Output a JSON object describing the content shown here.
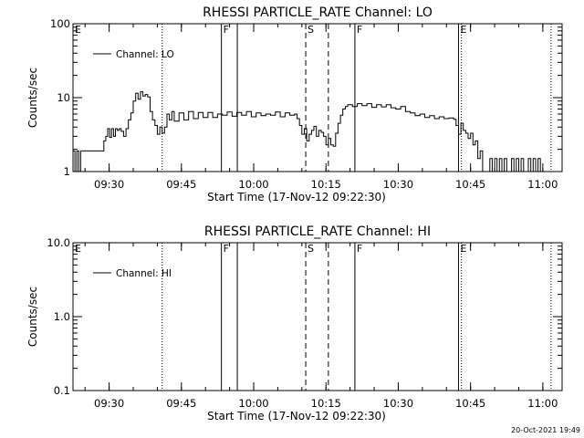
{
  "footer": {
    "timestamp": "20-Oct-2021 19:49"
  },
  "chart_data": [
    {
      "type": "line",
      "title": "RHESSI PARTICLE_RATE Channel: LO",
      "xlabel": "Start Time (17-Nov-12 09:22:30)",
      "ylabel": "Counts/sec",
      "x_unit": "minutes after 09:22:30",
      "xlim": [
        0,
        101.5
      ],
      "ylim": [
        1,
        100
      ],
      "yscale": "log",
      "x_ticks": [
        {
          "x": 7.5,
          "label": "09:30"
        },
        {
          "x": 22.5,
          "label": "09:45"
        },
        {
          "x": 37.5,
          "label": "10:00"
        },
        {
          "x": 52.5,
          "label": "10:15"
        },
        {
          "x": 67.5,
          "label": "10:30"
        },
        {
          "x": 82.5,
          "label": "10:45"
        },
        {
          "x": 97.5,
          "label": "11:00"
        }
      ],
      "y_ticks": [
        {
          "y": 1,
          "label": "1"
        },
        {
          "y": 10,
          "label": "10"
        },
        {
          "y": 100,
          "label": "100"
        }
      ],
      "legend": {
        "position": "top-left",
        "entries": [
          "Channel: LO"
        ]
      },
      "markers": [
        {
          "x": 0,
          "style": "none",
          "label": "E"
        },
        {
          "x": 18.5,
          "style": "dotted",
          "label": ""
        },
        {
          "x": 30.8,
          "style": "solid",
          "label": "F"
        },
        {
          "x": 34.1,
          "style": "solid",
          "label": ""
        },
        {
          "x": 48.3,
          "style": "dashed",
          "label": "S"
        },
        {
          "x": 53.0,
          "style": "dashed",
          "label": ""
        },
        {
          "x": 58.5,
          "style": "solid",
          "label": "F"
        },
        {
          "x": 80.0,
          "style": "solid",
          "label": "E"
        },
        {
          "x": 80.6,
          "style": "dotted",
          "label": ""
        },
        {
          "x": 99.2,
          "style": "dotted",
          "label": ""
        }
      ],
      "series": [
        {
          "name": "Channel: LO",
          "x": [
            0,
            0.4,
            0.8,
            1.2,
            1.6,
            2,
            2.5,
            3,
            4,
            5,
            6,
            6.4,
            6.8,
            7.2,
            7.6,
            8,
            8.4,
            8.8,
            9.2,
            9.6,
            10,
            10.5,
            11,
            11.5,
            12,
            12.5,
            13,
            13.5,
            14,
            14.5,
            15,
            15.5,
            16,
            16.5,
            17,
            17.5,
            18,
            18.5,
            19,
            19.5,
            20,
            20.5,
            21,
            22,
            23,
            24,
            25,
            26,
            27,
            28,
            29,
            30,
            31,
            32,
            33,
            34,
            35,
            36,
            37,
            38,
            39,
            40,
            41,
            42,
            43,
            44,
            45,
            46,
            46.5,
            47,
            47.5,
            48,
            48.5,
            49,
            49.5,
            50,
            50.5,
            51,
            51.5,
            52,
            52.5,
            53,
            53.5,
            54,
            54.5,
            55,
            55.5,
            56,
            56.5,
            57,
            58,
            59,
            60,
            61,
            62,
            63,
            64,
            65,
            66,
            67,
            68,
            69,
            70,
            71,
            72,
            73,
            74,
            75,
            76,
            77,
            78,
            79,
            79.5,
            80,
            80.5,
            81,
            81.5,
            82,
            82.5,
            83,
            83.5,
            84,
            84.5,
            85,
            85.5,
            86,
            86.5,
            87,
            87.5,
            88,
            88.5,
            89,
            89.5,
            90,
            90.5,
            91,
            91.5,
            92,
            92.5,
            93,
            93.5,
            94,
            94.5,
            95,
            95.5,
            96,
            96.5,
            97
          ],
          "y": [
            1.9,
            1.0,
            1.9,
            1.0,
            1.9,
            1.9,
            1.9,
            1.9,
            1.9,
            1.9,
            1.9,
            2.6,
            3.0,
            3.8,
            2.9,
            3.8,
            3.0,
            3.8,
            3.6,
            3.8,
            3.5,
            3.0,
            3.8,
            5.0,
            6.2,
            9.0,
            11.5,
            9.5,
            12.0,
            10.5,
            11.0,
            10.2,
            6.5,
            5.0,
            4.2,
            3.2,
            4.0,
            3.3,
            4.0,
            6.0,
            5.0,
            6.5,
            4.8,
            6.2,
            5.0,
            6.5,
            5.2,
            6.3,
            5.4,
            6.3,
            5.4,
            6.0,
            5.8,
            6.4,
            5.6,
            6.3,
            5.8,
            6.5,
            5.5,
            6.2,
            5.7,
            6.0,
            5.8,
            6.4,
            5.5,
            6.2,
            5.8,
            6.0,
            5.2,
            4.2,
            3.2,
            3.8,
            2.6,
            3.2,
            3.6,
            4.1,
            3.0,
            3.6,
            3.4,
            3.0,
            2.3,
            2.8,
            2.3,
            2.2,
            3.3,
            4.5,
            5.8,
            7.0,
            7.6,
            8.0,
            7.6,
            8.3,
            7.8,
            8.3,
            7.4,
            8.0,
            7.5,
            8.0,
            7.3,
            7.0,
            7.6,
            6.5,
            6.2,
            5.7,
            6.0,
            5.4,
            5.7,
            5.2,
            5.5,
            5.2,
            5.3,
            5.1,
            4.2,
            3.2,
            4.5,
            3.6,
            3.3,
            2.8,
            3.3,
            2.3,
            2.6,
            1.5,
            1.9,
            1.0,
            1.0,
            1.0,
            1.5,
            1.0,
            1.5,
            1.0,
            1.5,
            1.0,
            1.5,
            1.0,
            1.0,
            1.5,
            1.0,
            1.5,
            1.0,
            1.5,
            1.0,
            1.0,
            1.5,
            1.0,
            1.5,
            1.0,
            1.5,
            1.0
          ]
        }
      ]
    },
    {
      "type": "line",
      "title": "RHESSI PARTICLE_RATE Channel: HI",
      "xlabel": "Start Time (17-Nov-12 09:22:30)",
      "ylabel": "Counts/sec",
      "x_unit": "minutes after 09:22:30",
      "xlim": [
        0,
        101.5
      ],
      "ylim": [
        0.1,
        10
      ],
      "yscale": "log",
      "x_ticks": [
        {
          "x": 7.5,
          "label": "09:30"
        },
        {
          "x": 22.5,
          "label": "09:45"
        },
        {
          "x": 37.5,
          "label": "10:00"
        },
        {
          "x": 52.5,
          "label": "10:15"
        },
        {
          "x": 67.5,
          "label": "10:30"
        },
        {
          "x": 82.5,
          "label": "10:45"
        },
        {
          "x": 97.5,
          "label": "11:00"
        }
      ],
      "y_ticks": [
        {
          "y": 0.1,
          "label": "0.1"
        },
        {
          "y": 1,
          "label": "1.0"
        },
        {
          "y": 10,
          "label": "10.0"
        }
      ],
      "legend": {
        "position": "top-left",
        "entries": [
          "Channel: HI"
        ]
      },
      "markers": [
        {
          "x": 0,
          "style": "none",
          "label": "E"
        },
        {
          "x": 18.5,
          "style": "dotted",
          "label": ""
        },
        {
          "x": 30.8,
          "style": "solid",
          "label": "F"
        },
        {
          "x": 34.1,
          "style": "solid",
          "label": ""
        },
        {
          "x": 48.3,
          "style": "dashed",
          "label": "S"
        },
        {
          "x": 53.0,
          "style": "dashed",
          "label": ""
        },
        {
          "x": 58.5,
          "style": "solid",
          "label": "F"
        },
        {
          "x": 80.0,
          "style": "solid",
          "label": "E"
        },
        {
          "x": 80.6,
          "style": "dotted",
          "label": ""
        },
        {
          "x": 99.2,
          "style": "dotted",
          "label": ""
        }
      ],
      "series": [
        {
          "name": "Channel: HI",
          "x": [],
          "y": []
        }
      ]
    }
  ]
}
